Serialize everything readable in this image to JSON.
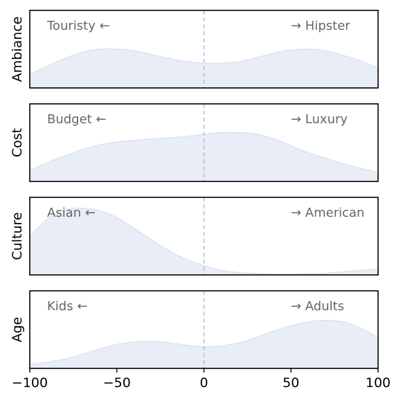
{
  "chart_data": {
    "type": "area",
    "xlim": [
      -100,
      100
    ],
    "x_ticks": [
      -100,
      -50,
      0,
      50,
      100
    ],
    "x_tick_labels": [
      "−100",
      "−50",
      "0",
      "50",
      "100"
    ],
    "reference_line_x": 0,
    "grid": false,
    "colors": {
      "fill": "#e8edf6",
      "edge": "#d9e2f1",
      "reference_line": "#aac3de",
      "pole_text": "#666666"
    },
    "panels": [
      {
        "ylabel": "Ambiance",
        "left_pole": "Touristy ←",
        "right_pole": "→ Hipster",
        "x": [
          -100,
          -90,
          -80,
          -70,
          -60,
          -50,
          -40,
          -30,
          -20,
          -10,
          0,
          10,
          20,
          30,
          40,
          50,
          60,
          70,
          80,
          90,
          100
        ],
        "density": [
          0.18,
          0.28,
          0.38,
          0.46,
          0.5,
          0.5,
          0.48,
          0.43,
          0.38,
          0.34,
          0.32,
          0.32,
          0.34,
          0.39,
          0.45,
          0.49,
          0.5,
          0.48,
          0.42,
          0.35,
          0.26
        ]
      },
      {
        "ylabel": "Cost",
        "left_pole": "Budget ←",
        "right_pole": "→ Luxury",
        "x": [
          -100,
          -90,
          -80,
          -70,
          -60,
          -50,
          -40,
          -30,
          -20,
          -10,
          0,
          10,
          20,
          30,
          40,
          50,
          60,
          70,
          80,
          90,
          100
        ],
        "density": [
          0.14,
          0.24,
          0.33,
          0.41,
          0.47,
          0.51,
          0.53,
          0.55,
          0.56,
          0.58,
          0.61,
          0.63,
          0.63,
          0.61,
          0.55,
          0.46,
          0.37,
          0.3,
          0.23,
          0.17,
          0.12
        ]
      },
      {
        "ylabel": "Culture",
        "left_pole": "Asian ←",
        "right_pole": "→ American",
        "x": [
          -100,
          -90,
          -80,
          -70,
          -60,
          -50,
          -40,
          -30,
          -20,
          -10,
          0,
          10,
          20,
          30,
          40,
          50,
          60,
          70,
          80,
          90,
          100
        ],
        "density": [
          0.5,
          0.72,
          0.84,
          0.86,
          0.83,
          0.74,
          0.6,
          0.45,
          0.31,
          0.2,
          0.12,
          0.06,
          0.03,
          0.02,
          0.01,
          0.01,
          0.015,
          0.02,
          0.04,
          0.06,
          0.08
        ]
      },
      {
        "ylabel": "Age",
        "left_pole": "Kids ←",
        "right_pole": "→ Adults",
        "x": [
          -100,
          -90,
          -80,
          -70,
          -60,
          -50,
          -40,
          -30,
          -20,
          -10,
          0,
          10,
          20,
          30,
          40,
          50,
          60,
          70,
          80,
          90,
          100
        ],
        "density": [
          0.05,
          0.08,
          0.12,
          0.18,
          0.25,
          0.31,
          0.34,
          0.35,
          0.33,
          0.3,
          0.28,
          0.29,
          0.33,
          0.4,
          0.48,
          0.55,
          0.6,
          0.62,
          0.6,
          0.52,
          0.4
        ]
      }
    ]
  }
}
